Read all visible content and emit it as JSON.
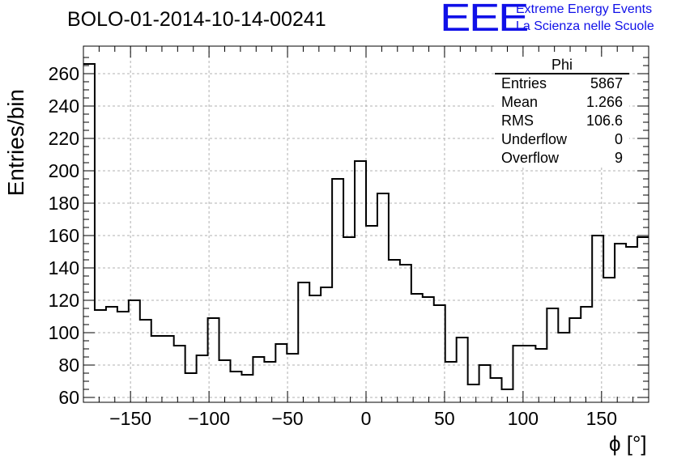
{
  "logo": {
    "mark": "EEE",
    "line1": "Extreme Energy Events",
    "line2": "La Scienza nelle Scuole",
    "color": "#1010e8"
  },
  "chart_data": {
    "type": "histogram",
    "title": "BOLO-01-2014-10-14-00241",
    "xlabel": "ϕ [°]",
    "ylabel": "Entries/bin",
    "xlim": [
      -180,
      180
    ],
    "ylim": [
      57,
      277
    ],
    "xticks": [
      -150,
      -100,
      -50,
      0,
      50,
      100,
      150
    ],
    "xtick_labels": [
      "−150",
      "−100",
      "−50",
      "0",
      "50",
      "100",
      "150"
    ],
    "yticks": [
      60,
      80,
      100,
      120,
      140,
      160,
      180,
      200,
      220,
      240,
      260
    ],
    "grid": true,
    "bin_width": 7.2,
    "bin_edges_start": -180,
    "values": [
      266,
      114,
      116,
      113,
      120,
      108,
      98,
      98,
      92,
      75,
      86,
      109,
      83,
      76,
      74,
      85,
      82,
      93,
      87,
      131,
      123,
      128,
      195,
      159,
      206,
      166,
      186,
      145,
      142,
      124,
      122,
      117,
      82,
      97,
      68,
      80,
      72,
      65,
      92,
      92,
      90,
      115,
      100,
      109,
      116,
      160,
      134,
      155,
      153,
      159
    ],
    "line_color": "#000000",
    "stats": {
      "title": "Phi",
      "rows": [
        {
          "label": "Entries",
          "value": "5867"
        },
        {
          "label": "Mean",
          "value": "1.266"
        },
        {
          "label": "RMS",
          "value": "106.6"
        },
        {
          "label": "Underflow",
          "value": "0"
        },
        {
          "label": "Overflow",
          "value": "9"
        }
      ]
    }
  }
}
